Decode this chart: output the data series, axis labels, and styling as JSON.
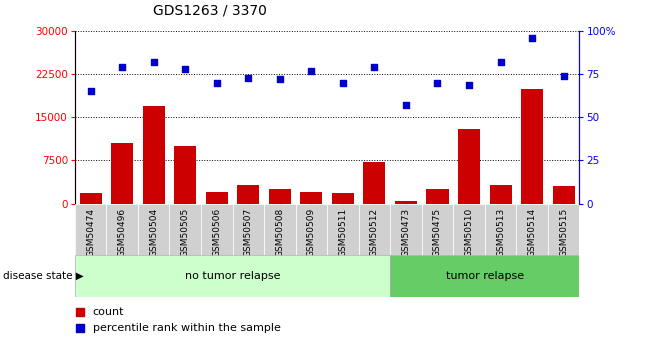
{
  "title": "GDS1263 / 3370",
  "samples": [
    "GSM50474",
    "GSM50496",
    "GSM50504",
    "GSM50505",
    "GSM50506",
    "GSM50507",
    "GSM50508",
    "GSM50509",
    "GSM50511",
    "GSM50512",
    "GSM50473",
    "GSM50475",
    "GSM50510",
    "GSM50513",
    "GSM50514",
    "GSM50515"
  ],
  "counts": [
    1800,
    10500,
    17000,
    10000,
    2000,
    3200,
    2500,
    2000,
    1800,
    7200,
    500,
    2500,
    13000,
    3200,
    20000,
    3000
  ],
  "percentiles": [
    65,
    79,
    82,
    78,
    70,
    73,
    72,
    77,
    70,
    79,
    57,
    70,
    69,
    82,
    96,
    74
  ],
  "no_tumor_count": 10,
  "tumor_count": 6,
  "ylim_left": [
    0,
    30000
  ],
  "ylim_right": [
    0,
    100
  ],
  "yticks_left": [
    0,
    7500,
    15000,
    22500,
    30000
  ],
  "yticks_right": [
    0,
    25,
    50,
    75,
    100
  ],
  "bar_color": "#cc0000",
  "dot_color": "#0000cc",
  "no_tumor_color": "#ccffcc",
  "tumor_color": "#66cc66",
  "label_bg_color": "#d0d0d0",
  "legend_count_label": "count",
  "legend_pct_label": "percentile rank within the sample",
  "disease_state_label": "disease state",
  "no_tumor_label": "no tumor relapse",
  "tumor_label": "tumor relapse"
}
